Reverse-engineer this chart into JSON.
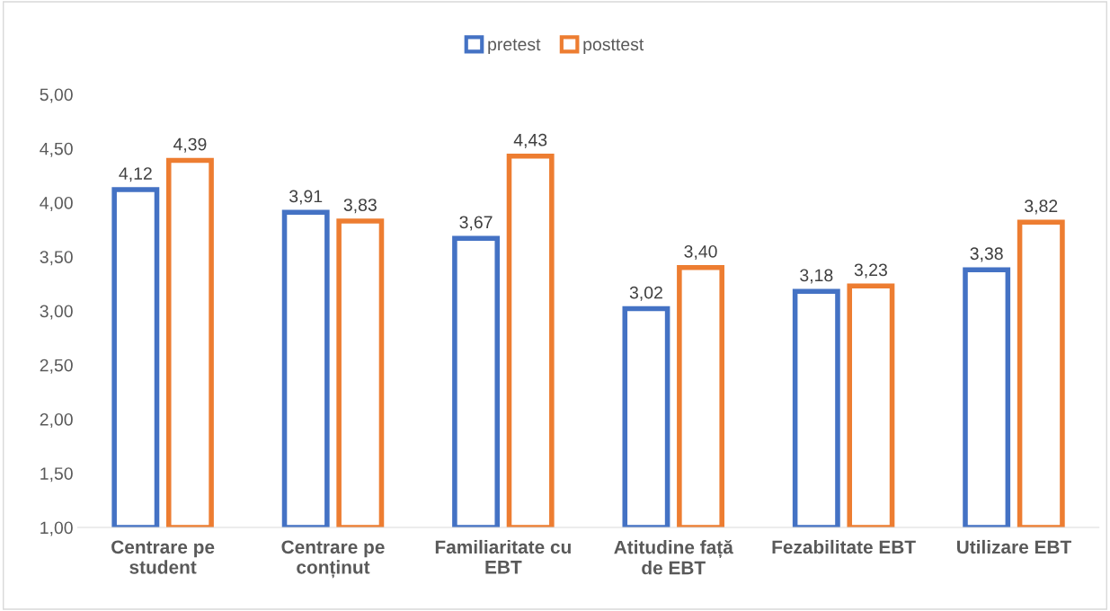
{
  "chart_data": {
    "type": "bar",
    "categories": [
      "Centrare pe student",
      "Centrare pe conținut",
      "Familiaritate cu EBT",
      "Atitudine față de EBT",
      "Fezabilitate EBT",
      "Utilizare EBT"
    ],
    "series": [
      {
        "name": "pretest",
        "color": "#4472c4",
        "values": [
          4.12,
          3.91,
          3.67,
          3.02,
          3.18,
          3.38
        ],
        "value_labels": [
          "4,12",
          "3,91",
          "3,67",
          "3,02",
          "3,18",
          "3,38"
        ]
      },
      {
        "name": "posttest",
        "color": "#ed7d31",
        "values": [
          4.39,
          3.83,
          4.43,
          3.4,
          3.23,
          3.82
        ],
        "value_labels": [
          "4,39",
          "3,83",
          "4,43",
          "3,40",
          "3,23",
          "3,82"
        ]
      }
    ],
    "ylim": [
      1,
      5
    ],
    "yticks": [
      {
        "value": 1,
        "label": "1,00"
      },
      {
        "value": 1.5,
        "label": "1,50"
      },
      {
        "value": 2,
        "label": "2,00"
      },
      {
        "value": 2.5,
        "label": "2,50"
      },
      {
        "value": 3,
        "label": "3,00"
      },
      {
        "value": 3.5,
        "label": "3,50"
      },
      {
        "value": 4,
        "label": "4,00"
      },
      {
        "value": 4.5,
        "label": "4,50"
      },
      {
        "value": 5,
        "label": "5,00"
      }
    ],
    "grid": false,
    "legend": "top"
  }
}
